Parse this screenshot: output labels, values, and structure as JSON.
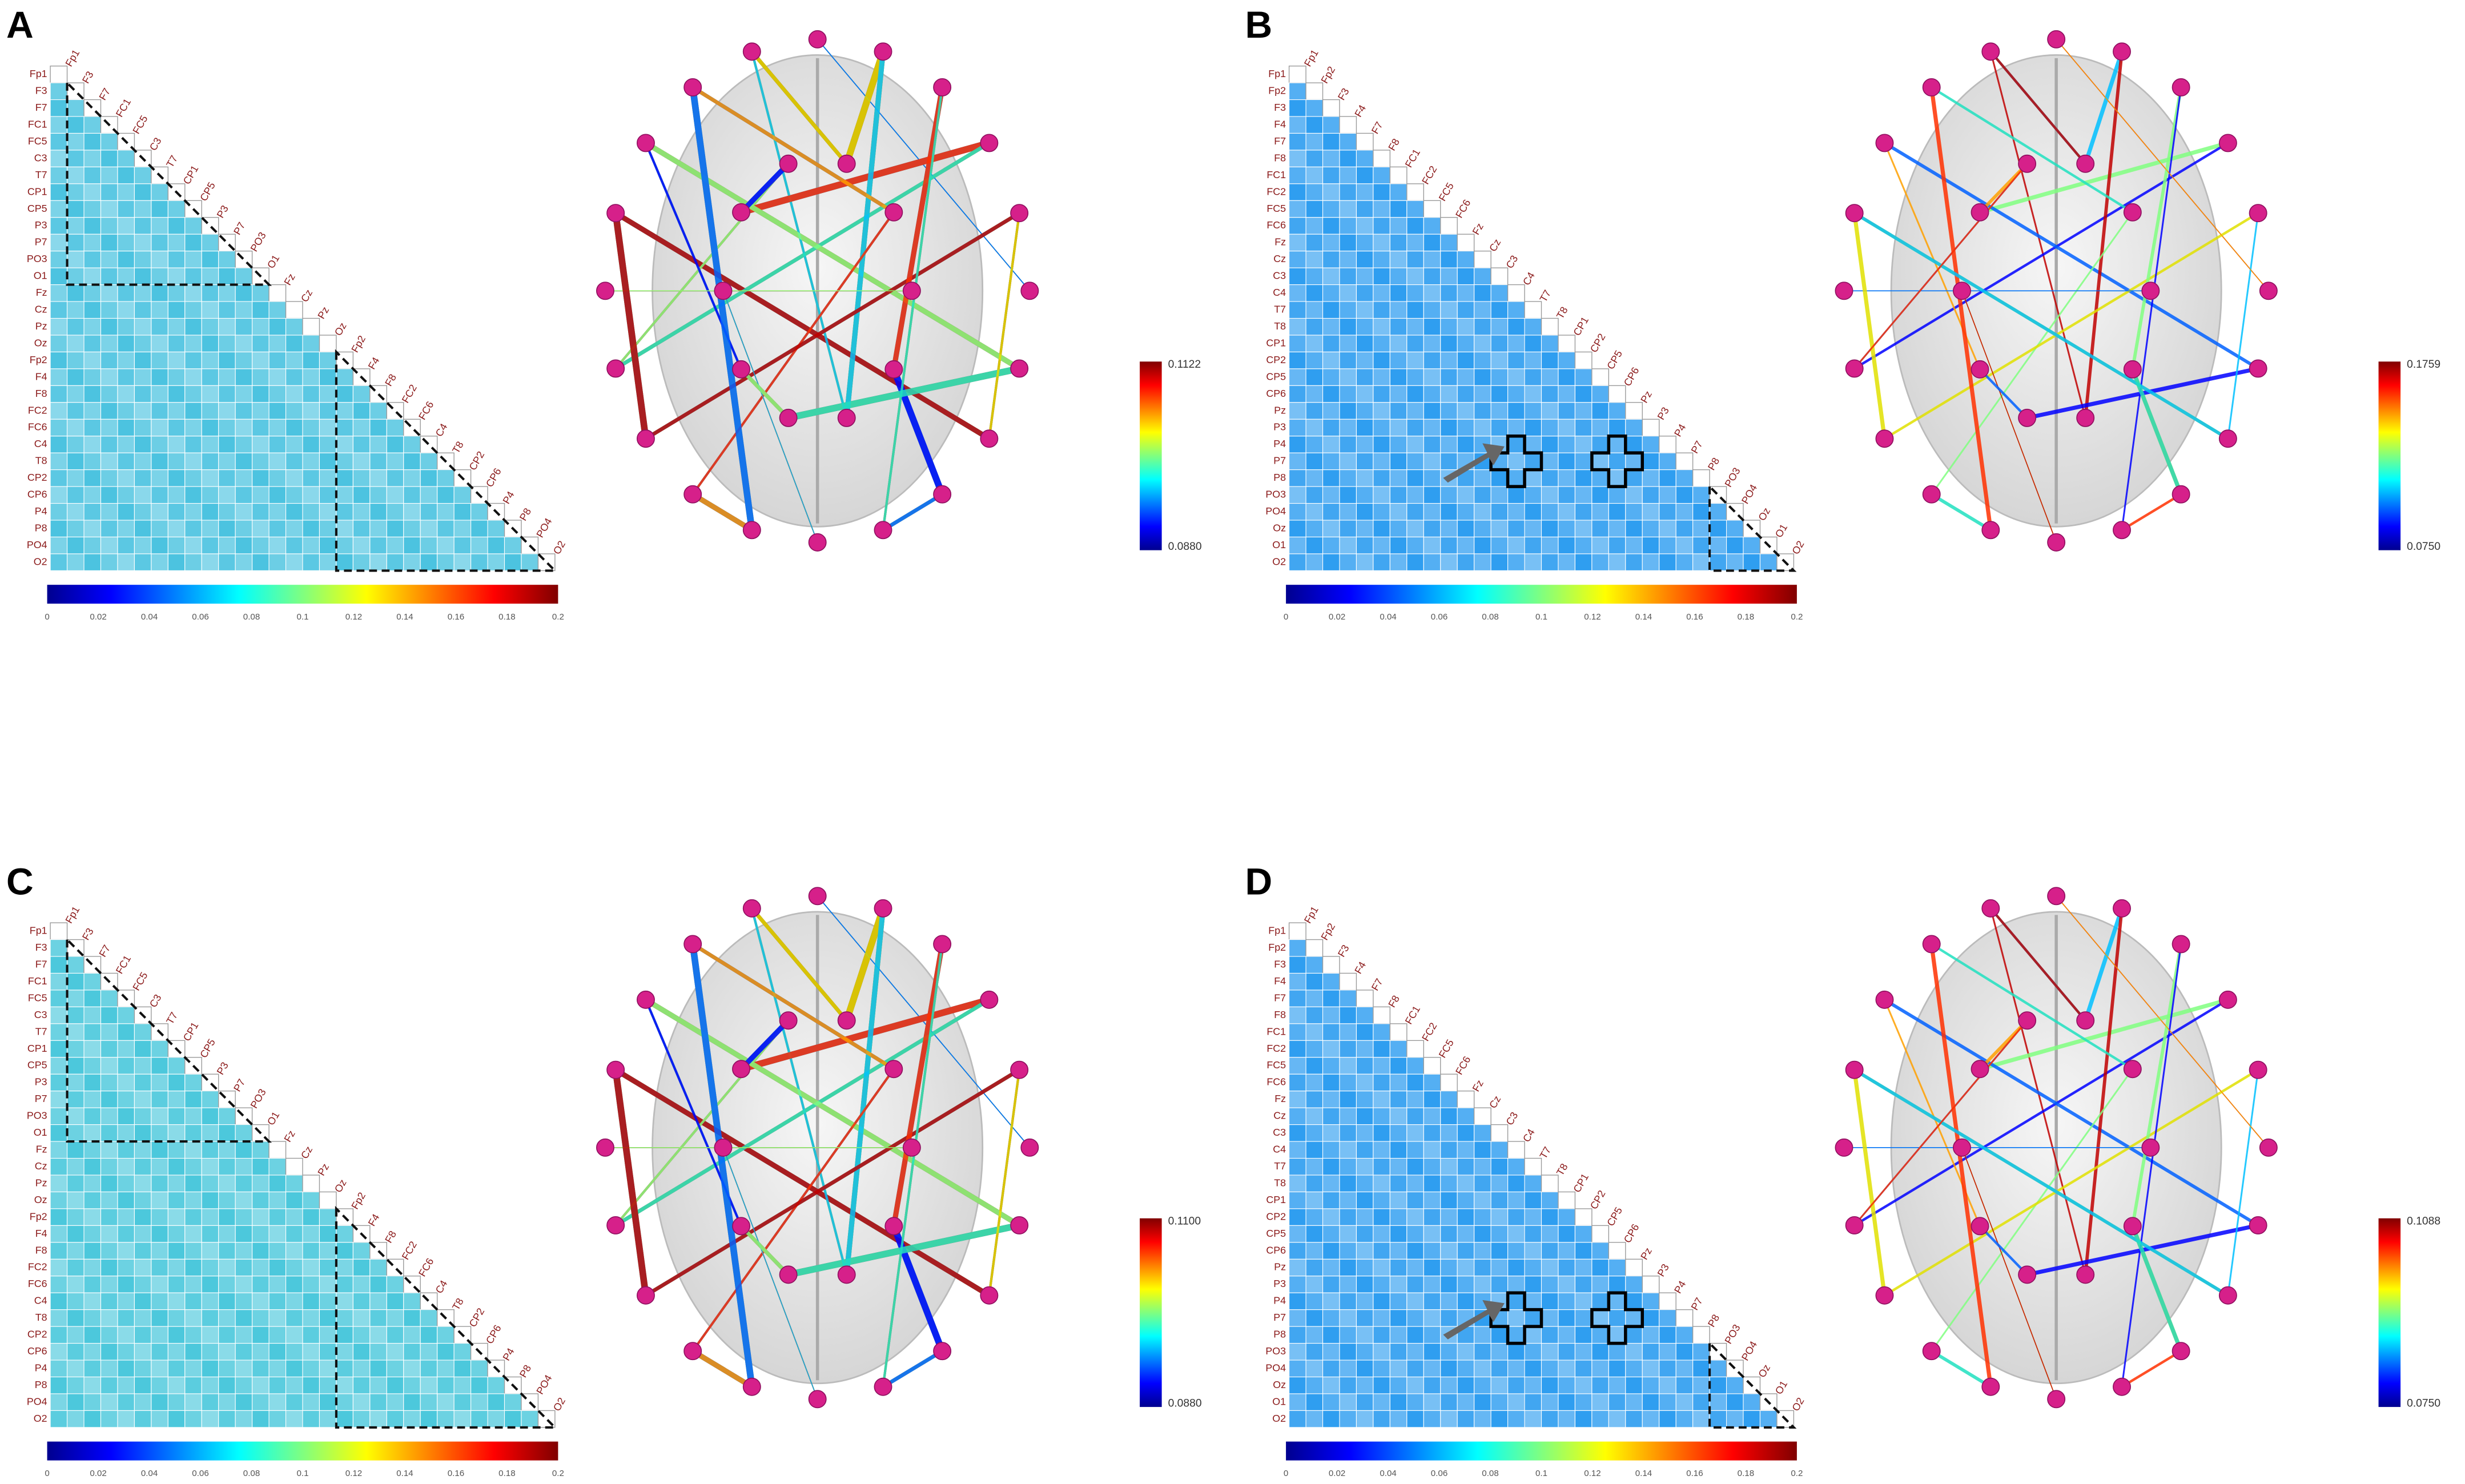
{
  "panels": [
    {
      "letter": "A",
      "channels": [
        "Fp1",
        "F3",
        "F7",
        "FC1",
        "FC5",
        "C3",
        "T7",
        "CP1",
        "CP5",
        "P3",
        "P7",
        "PO3",
        "O1",
        "Fz",
        "Cz",
        "Pz",
        "Oz",
        "Fp2",
        "F4",
        "F8",
        "FC2",
        "FC6",
        "C4",
        "T8",
        "CP2",
        "CP6",
        "P4",
        "P8",
        "PO4",
        "O2"
      ],
      "colorbar_ticks": [
        "0",
        "0.02",
        "0.04",
        "0.06",
        "0.08",
        "0.1",
        "0.12",
        "0.14",
        "0.16",
        "0.18",
        "0.2"
      ],
      "scale_max": "0.1122",
      "scale_min": "0.0880",
      "cell_color": "#4cc3e0"
    },
    {
      "letter": "B",
      "channels": [
        "Fp1",
        "Fp2",
        "F3",
        "F4",
        "F7",
        "F8",
        "FC1",
        "FC2",
        "FC5",
        "FC6",
        "Fz",
        "Cz",
        "C3",
        "C4",
        "T7",
        "T8",
        "CP1",
        "CP2",
        "CP5",
        "CP6",
        "Pz",
        "P3",
        "P4",
        "P7",
        "P8",
        "PO3",
        "PO4",
        "Oz",
        "O1",
        "O2"
      ],
      "colorbar_ticks": [
        "0",
        "0.02",
        "0.04",
        "0.06",
        "0.08",
        "0.1",
        "0.12",
        "0.14",
        "0.16",
        "0.18",
        "0.2"
      ],
      "scale_max": "0.1759",
      "scale_min": "0.0750",
      "cell_color": "#2f9ef0"
    },
    {
      "letter": "C",
      "channels": [
        "Fp1",
        "F3",
        "F7",
        "FC1",
        "FC5",
        "C3",
        "T7",
        "CP1",
        "CP5",
        "P3",
        "P7",
        "PO3",
        "O1",
        "Fz",
        "Cz",
        "Pz",
        "Oz",
        "Fp2",
        "F4",
        "F8",
        "FC2",
        "FC6",
        "C4",
        "T8",
        "CP2",
        "CP6",
        "P4",
        "P8",
        "PO4",
        "O2"
      ],
      "colorbar_ticks": [
        "0",
        "0.02",
        "0.04",
        "0.06",
        "0.08",
        "0.1",
        "0.12",
        "0.14",
        "0.16",
        "0.18",
        "0.2"
      ],
      "scale_max": "0.1100",
      "scale_min": "0.0880",
      "cell_color": "#4cc8dc"
    },
    {
      "letter": "D",
      "channels": [
        "Fp1",
        "Fp2",
        "F3",
        "F4",
        "F7",
        "F8",
        "FC1",
        "FC2",
        "FC5",
        "FC6",
        "Fz",
        "Cz",
        "C3",
        "C4",
        "T7",
        "T8",
        "CP1",
        "CP2",
        "CP5",
        "CP6",
        "Pz",
        "P3",
        "P4",
        "P7",
        "P8",
        "PO3",
        "PO4",
        "Oz",
        "O1",
        "O2"
      ],
      "colorbar_ticks": [
        "0",
        "0.02",
        "0.04",
        "0.06",
        "0.08",
        "0.1",
        "0.12",
        "0.14",
        "0.16",
        "0.18",
        "0.2"
      ],
      "scale_max": "0.1088",
      "scale_min": "0.0750",
      "cell_color": "#2f9ef0"
    }
  ]
}
